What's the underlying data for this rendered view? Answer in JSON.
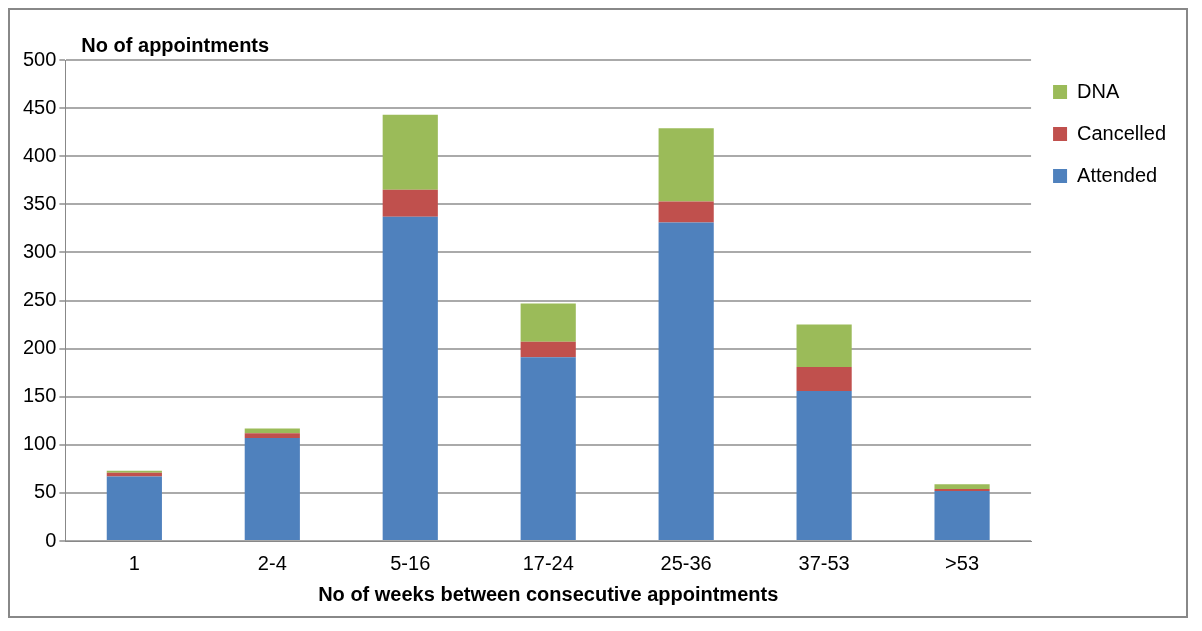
{
  "chart_data": {
    "type": "bar",
    "ylabel": "No of appointments",
    "xlabel": "No of weeks between consecutive appointments",
    "categories": [
      "1",
      "2-4",
      "5-16",
      "17-24",
      "25-36",
      "37-53",
      ">53"
    ],
    "stacked": true,
    "series": [
      {
        "name": "Attended",
        "color": "#4f81bd",
        "values": [
          67,
          107,
          337,
          191,
          331,
          156,
          52
        ]
      },
      {
        "name": "Cancelled",
        "color": "#c0504d",
        "values": [
          4,
          5,
          28,
          16,
          22,
          25,
          2
        ]
      },
      {
        "name": "DNA",
        "color": "#9bbb59",
        "values": [
          2,
          5,
          78,
          40,
          76,
          44,
          5
        ]
      }
    ],
    "ylim": [
      0,
      500
    ],
    "yticks": [
      0,
      50,
      100,
      150,
      200,
      250,
      300,
      350,
      400,
      450,
      500
    ],
    "grid": "y",
    "legend": "top right"
  }
}
